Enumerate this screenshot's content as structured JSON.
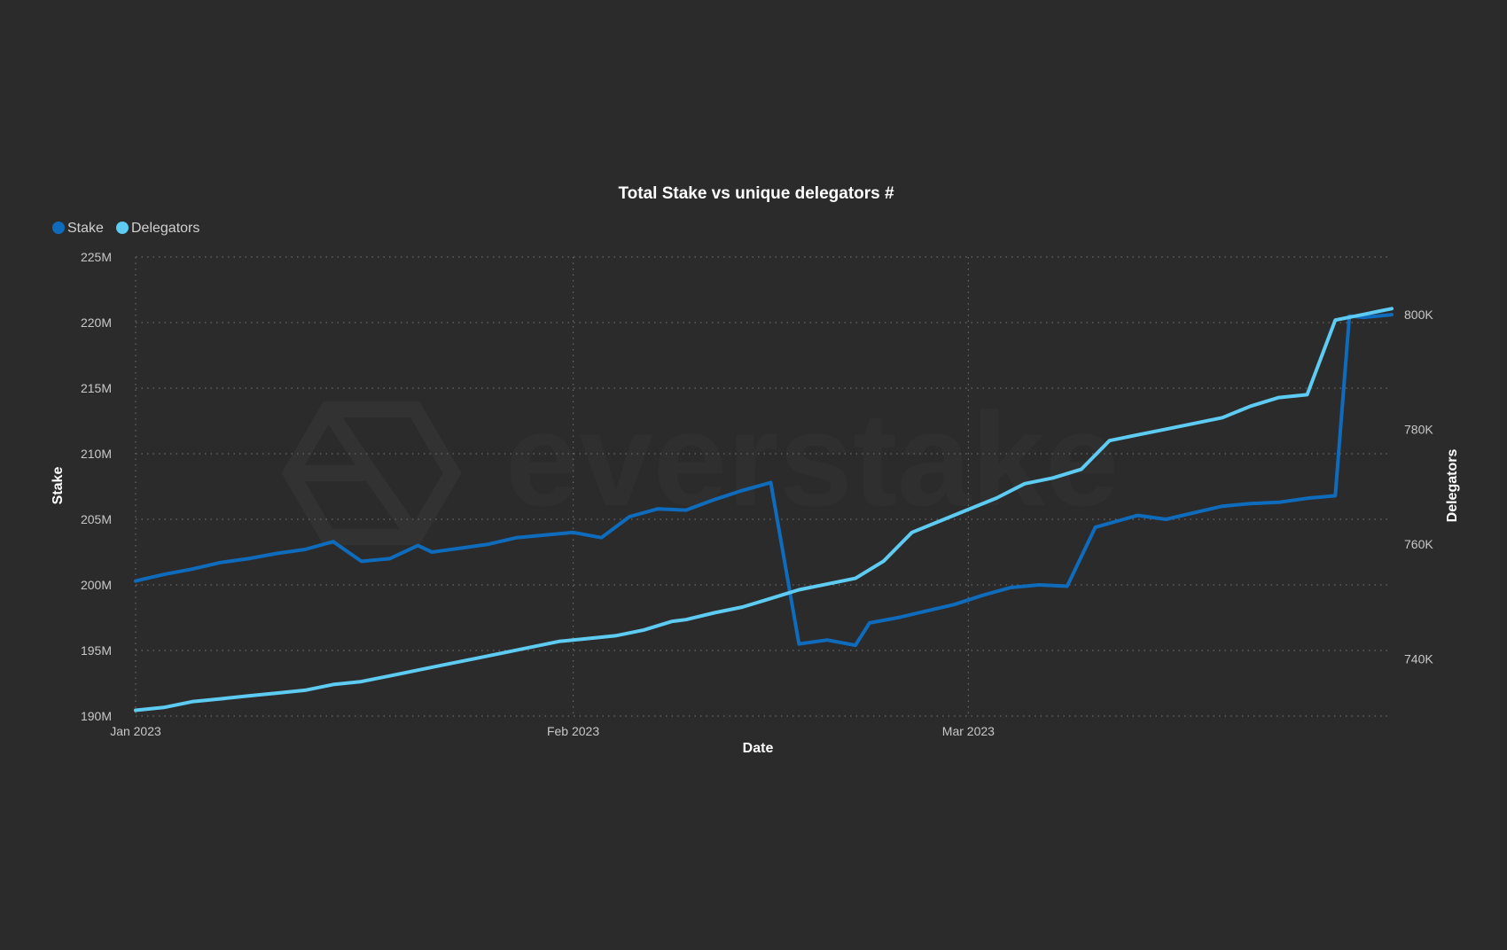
{
  "chart_data": {
    "type": "line",
    "title": "Total Stake vs unique delegators #",
    "xlabel": "Date",
    "ylabel_left": "Stake",
    "ylabel_right": "Delegators",
    "x_ticks": [
      "Jan 2023",
      "Feb 2023",
      "Mar 2023"
    ],
    "y_left_ticks": [
      "190M",
      "195M",
      "200M",
      "205M",
      "210M",
      "215M",
      "220M",
      "225M"
    ],
    "y_right_ticks": [
      "740K",
      "760K",
      "780K",
      "800K"
    ],
    "y_left_range": [
      190,
      225
    ],
    "y_right_range": [
      730,
      810
    ],
    "x_range": [
      "2023-01-01",
      "2023-03-31"
    ],
    "grid": true,
    "legend_position": "top-left",
    "watermark": "everstake",
    "series": [
      {
        "name": "Stake",
        "axis": "left",
        "color": "#0f6cbd",
        "x": [
          "2023-01-01",
          "2023-01-03",
          "2023-01-05",
          "2023-01-07",
          "2023-01-09",
          "2023-01-11",
          "2023-01-13",
          "2023-01-15",
          "2023-01-17",
          "2023-01-19",
          "2023-01-21",
          "2023-01-22",
          "2023-01-24",
          "2023-01-26",
          "2023-01-28",
          "2023-01-30",
          "2023-02-01",
          "2023-02-03",
          "2023-02-05",
          "2023-02-07",
          "2023-02-09",
          "2023-02-11",
          "2023-02-13",
          "2023-02-15",
          "2023-02-17",
          "2023-02-19",
          "2023-02-21",
          "2023-02-22",
          "2023-02-24",
          "2023-02-26",
          "2023-02-28",
          "2023-03-02",
          "2023-03-04",
          "2023-03-06",
          "2023-03-08",
          "2023-03-10",
          "2023-03-12",
          "2023-03-13",
          "2023-03-15",
          "2023-03-17",
          "2023-03-19",
          "2023-03-21",
          "2023-03-23",
          "2023-03-25",
          "2023-03-27",
          "2023-03-28",
          "2023-03-29",
          "2023-03-30",
          "2023-03-31"
        ],
        "values": [
          200.3,
          200.8,
          201.2,
          201.7,
          202.0,
          202.4,
          202.7,
          203.3,
          201.8,
          202.0,
          203.0,
          202.5,
          202.8,
          203.1,
          203.6,
          203.8,
          204.0,
          203.6,
          205.2,
          205.8,
          205.7,
          206.5,
          207.2,
          207.8,
          195.5,
          195.8,
          195.4,
          197.1,
          197.5,
          198.0,
          198.5,
          199.2,
          199.8,
          200.0,
          199.9,
          204.4,
          205.0,
          205.3,
          205.0,
          205.5,
          206.0,
          206.2,
          206.3,
          206.6,
          206.8,
          220.5,
          220.4,
          220.5,
          220.6
        ],
        "legend_label": "Stake"
      },
      {
        "name": "Delegators",
        "axis": "right",
        "color": "#5ecbf2",
        "x": [
          "2023-01-01",
          "2023-01-03",
          "2023-01-05",
          "2023-01-07",
          "2023-01-09",
          "2023-01-11",
          "2023-01-13",
          "2023-01-15",
          "2023-01-17",
          "2023-01-19",
          "2023-01-21",
          "2023-01-23",
          "2023-01-25",
          "2023-01-27",
          "2023-01-29",
          "2023-01-31",
          "2023-02-02",
          "2023-02-04",
          "2023-02-06",
          "2023-02-08",
          "2023-02-09",
          "2023-02-11",
          "2023-02-13",
          "2023-02-15",
          "2023-02-17",
          "2023-02-19",
          "2023-02-21",
          "2023-02-23",
          "2023-02-25",
          "2023-02-27",
          "2023-03-01",
          "2023-03-03",
          "2023-03-05",
          "2023-03-07",
          "2023-03-09",
          "2023-03-11",
          "2023-03-13",
          "2023-03-15",
          "2023-03-17",
          "2023-03-19",
          "2023-03-21",
          "2023-03-23",
          "2023-03-25",
          "2023-03-27",
          "2023-03-28",
          "2023-03-29",
          "2023-03-30",
          "2023-03-31"
        ],
        "values": [
          731,
          731.5,
          732.5,
          733,
          733.5,
          734,
          734.5,
          735.5,
          736,
          737,
          738,
          739,
          740,
          741,
          742,
          743,
          743.5,
          744,
          745,
          746.5,
          746.8,
          748,
          749,
          750.5,
          752,
          753,
          754,
          757,
          762,
          764,
          766,
          768,
          770.5,
          771.5,
          773,
          778,
          779,
          780,
          781,
          782,
          784,
          785.5,
          786,
          799,
          799.5,
          800,
          800.5,
          801
        ]
      }
    ]
  }
}
